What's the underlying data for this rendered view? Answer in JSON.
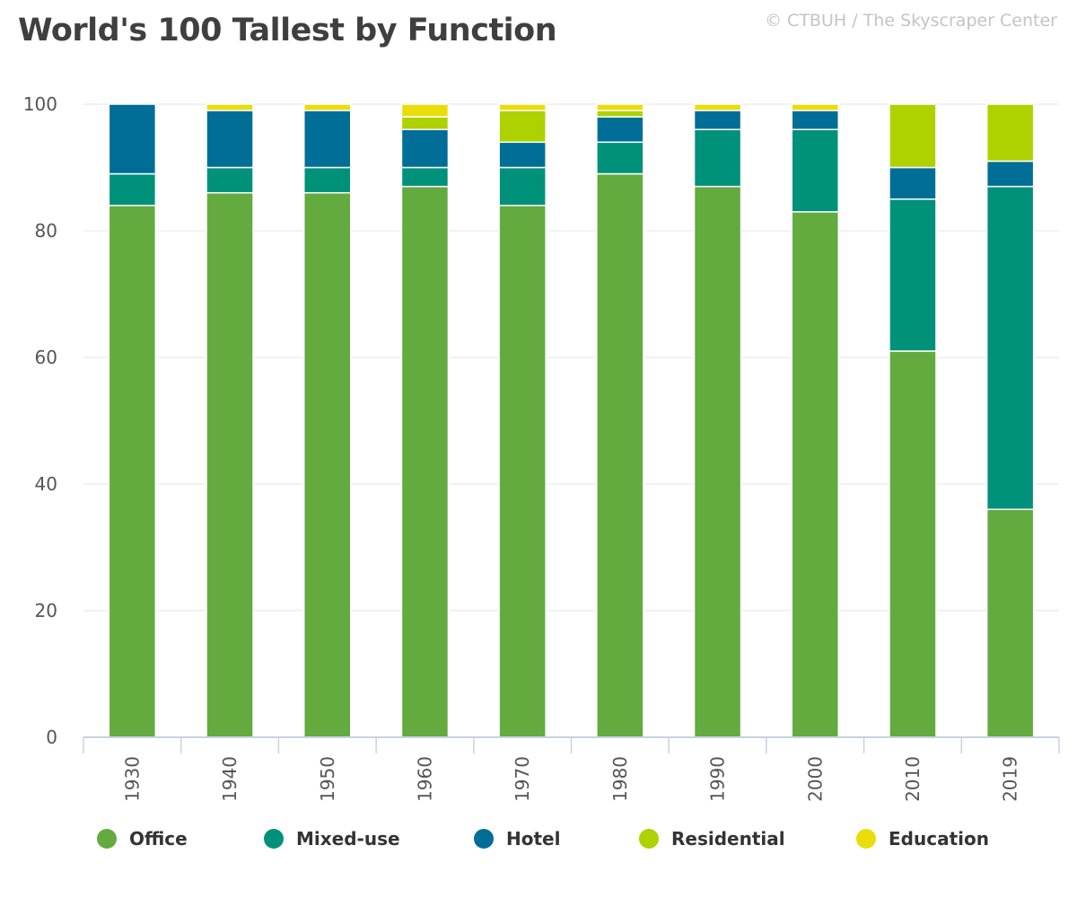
{
  "header": {
    "title": "World's 100 Tallest by Function",
    "credit": "© CTBUH / The Skyscraper Center"
  },
  "colors": {
    "office": "#63aa3f",
    "mixed_use": "#00917a",
    "hotel": "#006e96",
    "residential": "#aed100",
    "education": "#ebdd0a",
    "grid": "#e6e6e6",
    "axis": "#c8d2e0"
  },
  "chart_data": {
    "type": "bar",
    "stacked": true,
    "title": "World's 100 Tallest by Function",
    "xlabel": "",
    "ylabel": "",
    "ylim": [
      0,
      100
    ],
    "yticks": [
      0,
      20,
      40,
      60,
      80,
      100
    ],
    "grid": true,
    "legend_position": "bottom",
    "categories": [
      "1930",
      "1940",
      "1950",
      "1960",
      "1970",
      "1980",
      "1990",
      "2000",
      "2010",
      "2019"
    ],
    "series": [
      {
        "name": "Office",
        "color": "#63aa3f",
        "values": [
          84,
          86,
          86,
          87,
          84,
          89,
          87,
          83,
          61,
          36
        ]
      },
      {
        "name": "Mixed-use",
        "color": "#00917a",
        "values": [
          5,
          4,
          4,
          3,
          6,
          5,
          9,
          13,
          24,
          51
        ]
      },
      {
        "name": "Hotel",
        "color": "#006e96",
        "values": [
          11,
          9,
          9,
          6,
          4,
          4,
          3,
          3,
          5,
          4
        ]
      },
      {
        "name": "Residential",
        "color": "#aed100",
        "values": [
          0,
          0,
          0,
          2,
          5,
          1,
          0,
          0,
          10,
          9
        ]
      },
      {
        "name": "Education",
        "color": "#ebdd0a",
        "values": [
          0,
          1,
          1,
          2,
          1,
          1,
          1,
          1,
          0,
          0
        ]
      }
    ]
  }
}
